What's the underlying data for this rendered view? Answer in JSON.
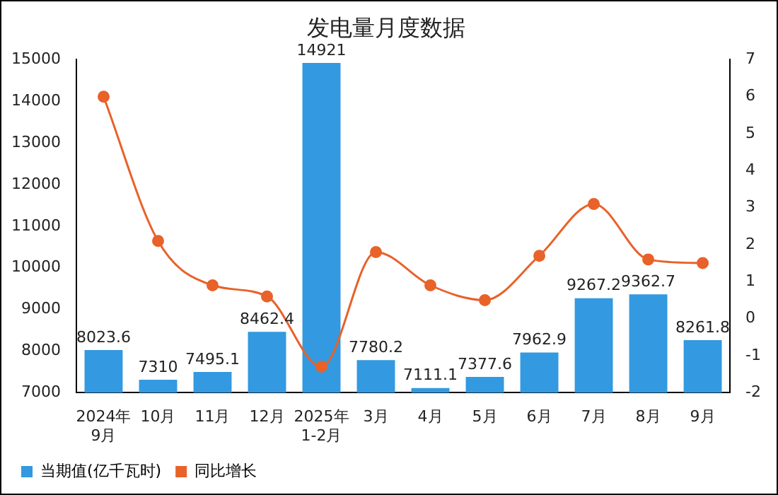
{
  "chart_data": {
    "type": "bar",
    "title": "发电量月度数据",
    "categories": [
      "2024年\n9月",
      "10月",
      "11月",
      "12月",
      "2025年\n1-2月",
      "3月",
      "4月",
      "5月",
      "6月",
      "7月",
      "8月",
      "9月"
    ],
    "series": [
      {
        "name": "当期值(亿千瓦时)",
        "color": "#3399e0",
        "values": [
          8023.6,
          7310,
          7495.1,
          8462.4,
          14921,
          7780.2,
          7111.1,
          7377.6,
          7962.9,
          9267.2,
          9362.7,
          8261.8
        ],
        "value_labels": [
          "8023.6",
          "7310",
          "7495.1",
          "8462.4",
          "14921",
          "7780.2",
          "7111.1",
          "7377.6",
          "7962.9",
          "9267.2",
          "9362.7",
          "8261.8"
        ]
      },
      {
        "name": "同比增长",
        "type": "line",
        "axis": "y2",
        "color": "#e8622a",
        "values": [
          6.0,
          2.1,
          0.9,
          0.6,
          -1.3,
          1.8,
          0.9,
          0.5,
          1.7,
          3.1,
          1.6,
          1.5
        ]
      }
    ],
    "ylim": [
      7000,
      15000
    ],
    "yticks": [
      7000,
      8000,
      9000,
      10000,
      11000,
      12000,
      13000,
      14000,
      15000
    ],
    "y2lim": [
      -2,
      7
    ],
    "y2ticks": [
      -2,
      -1,
      0,
      1,
      2,
      3,
      4,
      5,
      6,
      7
    ],
    "grid": false,
    "legend": "bottom left",
    "marker": "circle"
  }
}
